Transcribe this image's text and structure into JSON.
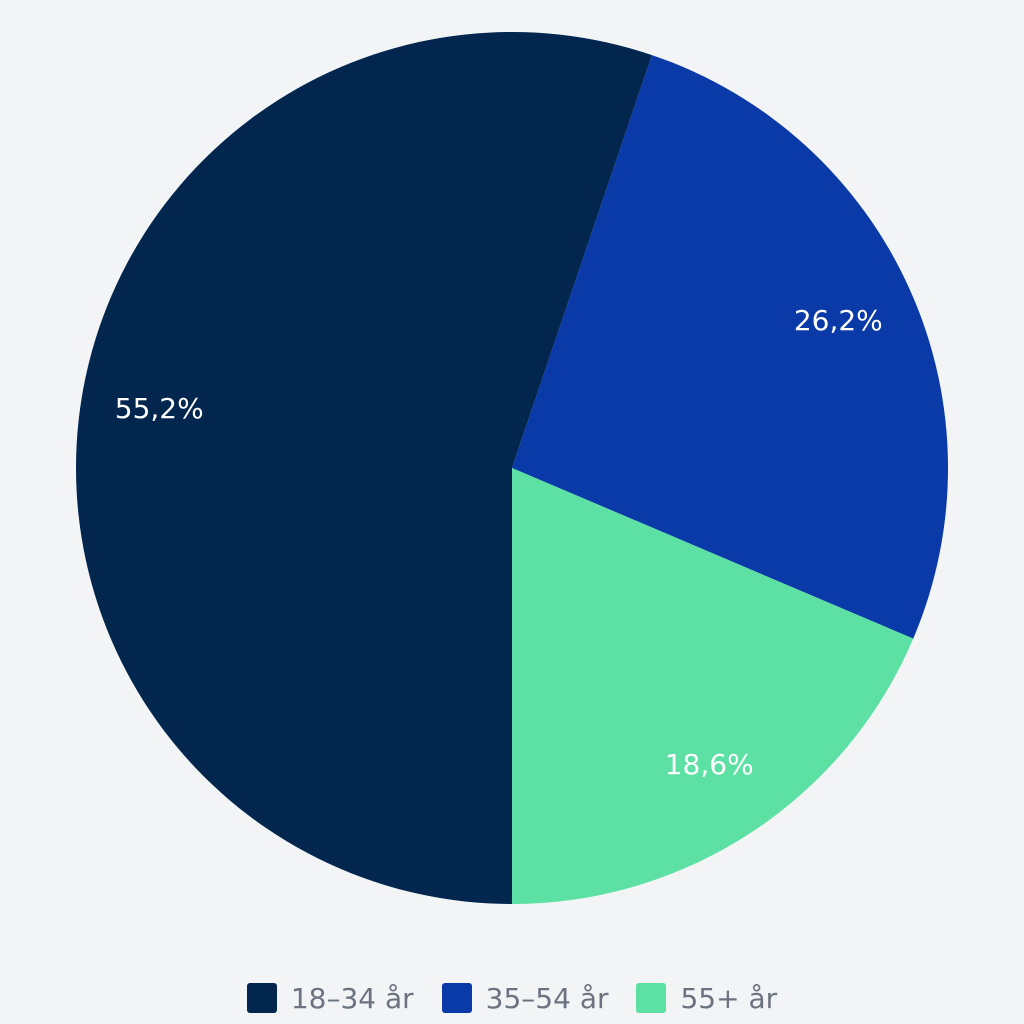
{
  "chart_data": {
    "type": "pie",
    "categories": [
      "18–34 år",
      "35–54 år",
      "55+ år"
    ],
    "values": [
      55.2,
      26.2,
      18.6
    ],
    "data_labels": [
      "55,2%",
      "26,2%",
      "18,6%"
    ],
    "colors": [
      "#03264f",
      "#0a39a8",
      "#5ce0a3"
    ],
    "start_angle_deg": 180,
    "direction": "clockwise",
    "legend_position": "bottom"
  },
  "colors": {
    "background": "#f2f4f6",
    "label_text": "#ffffff",
    "legend_text": "#6b7280"
  }
}
